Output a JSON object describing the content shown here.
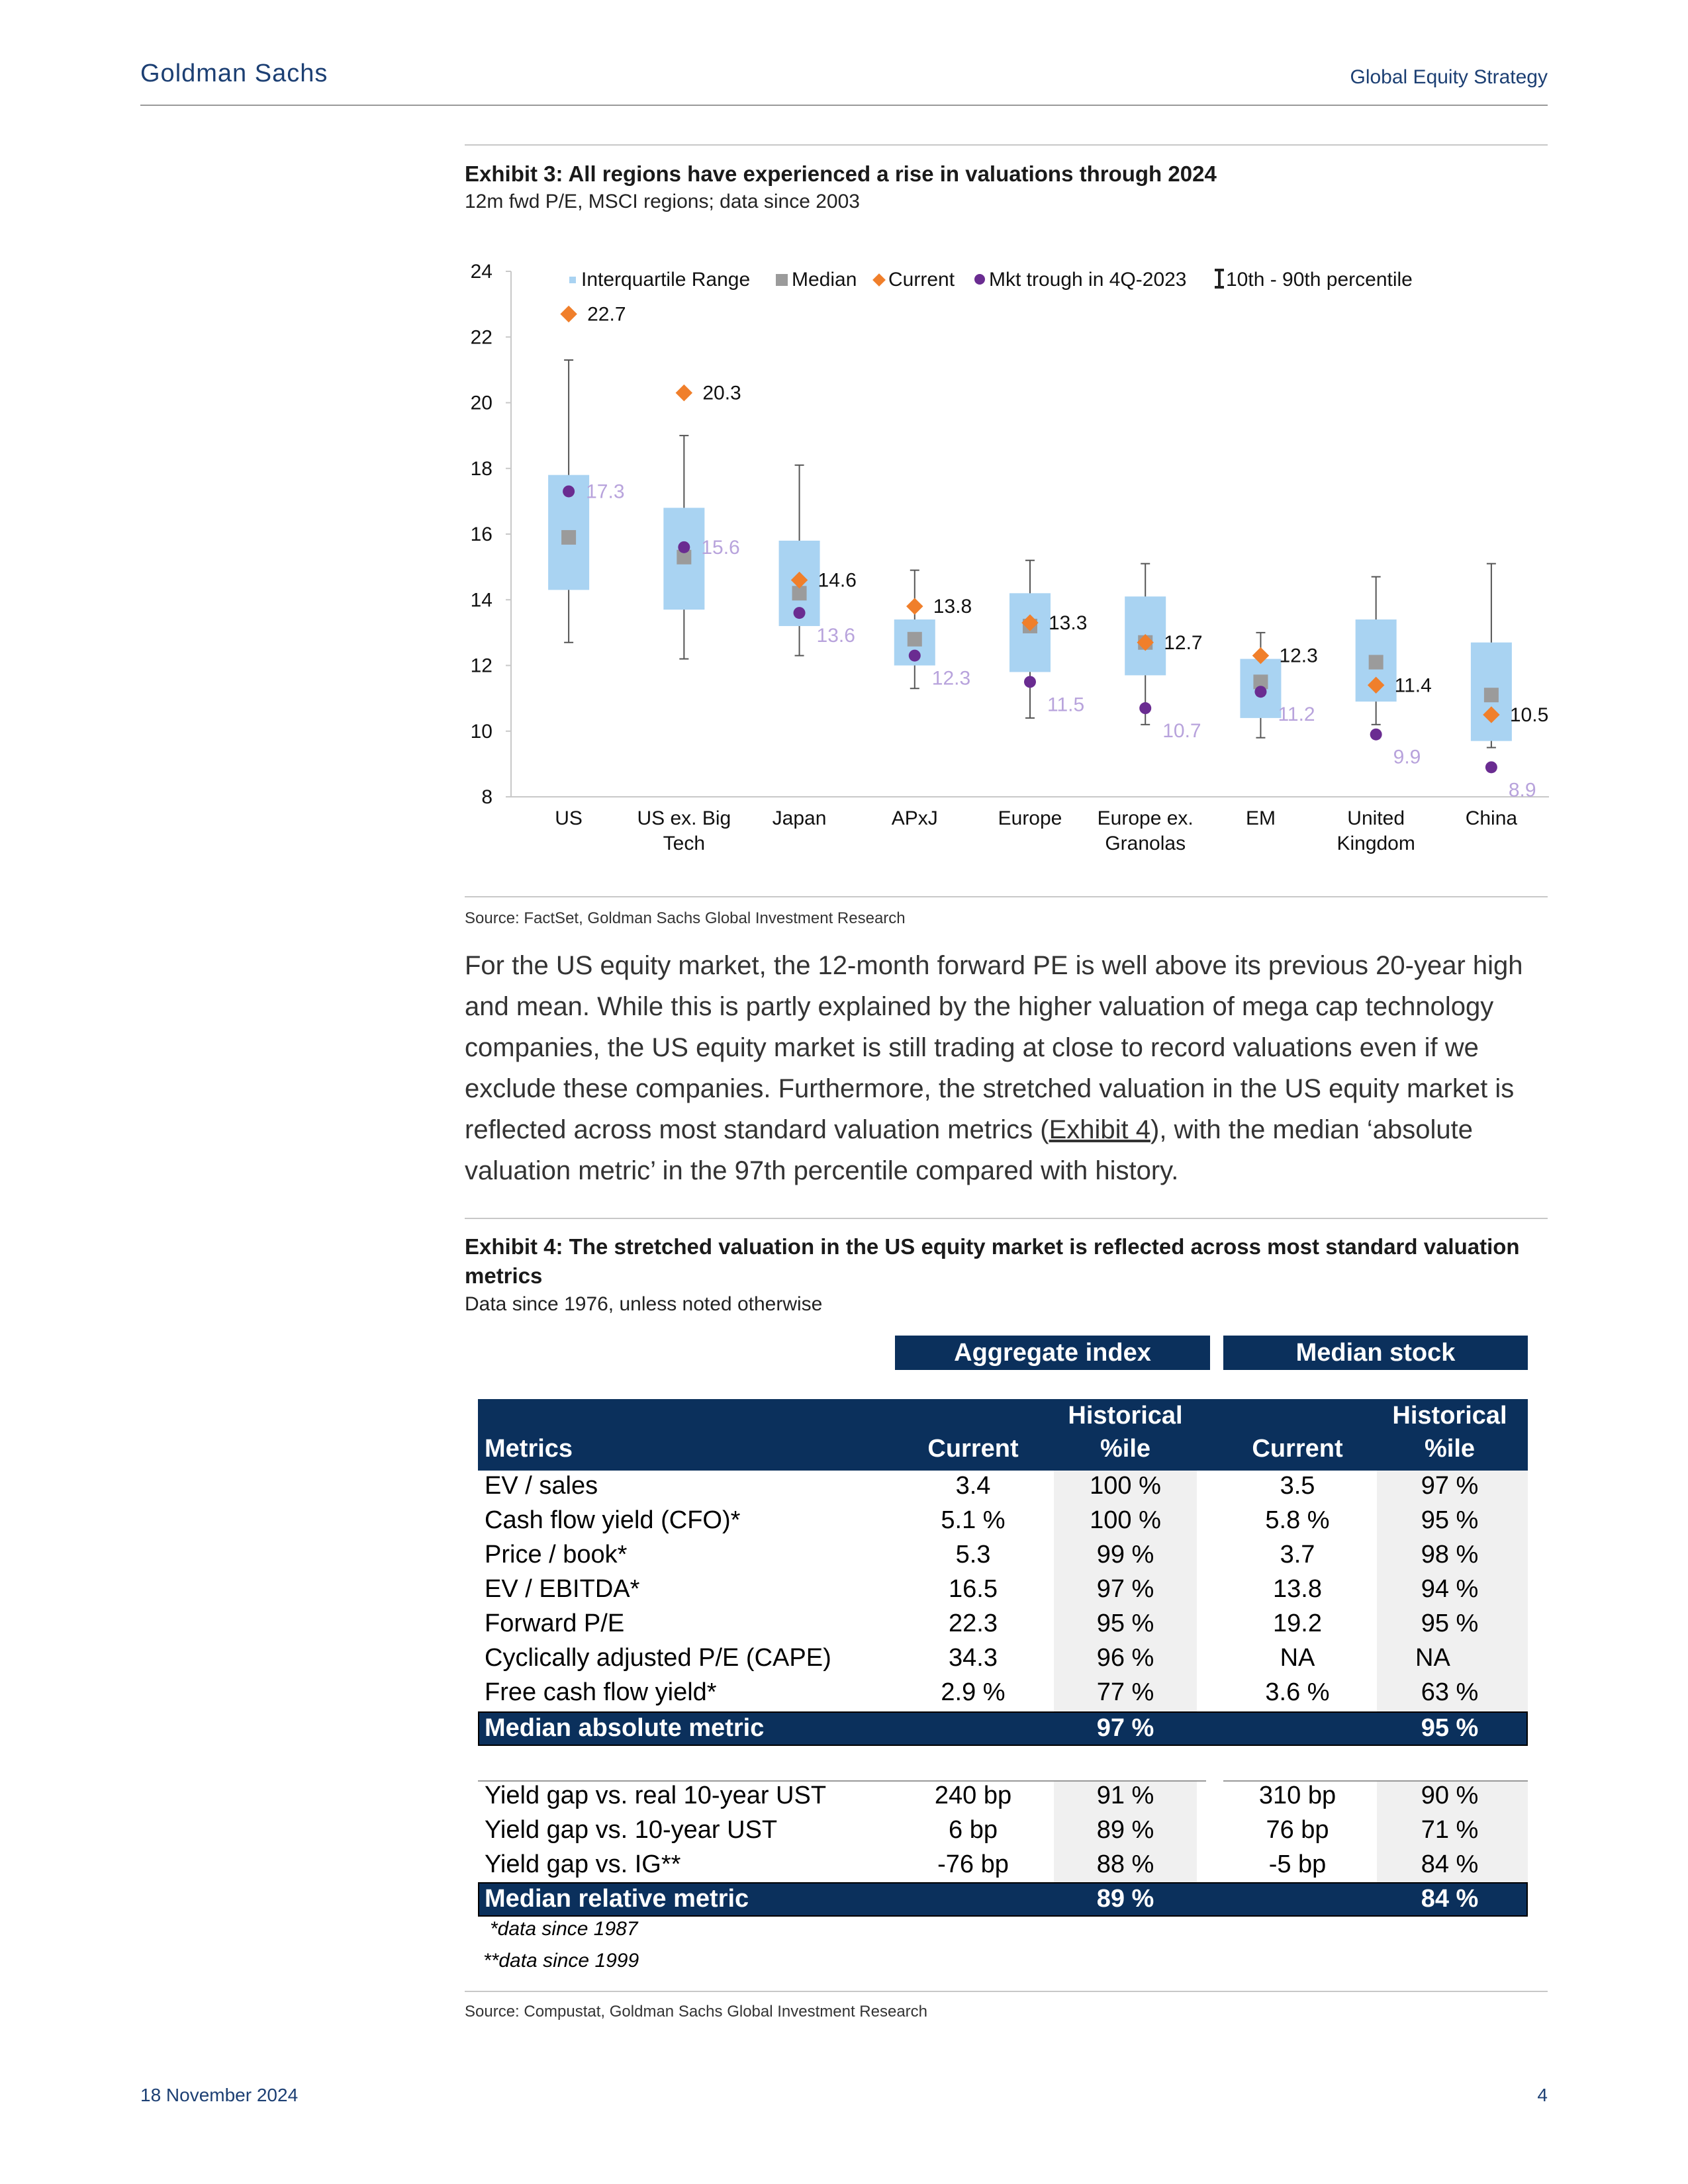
{
  "header": {
    "brand": "Goldman Sachs",
    "section": "Global Equity Strategy"
  },
  "exhibit3": {
    "title": "Exhibit 3: All regions have experienced a rise in valuations through 2024",
    "subtitle": "12m fwd P/E, MSCI regions; data since 2003",
    "source": "Source: FactSet, Goldman Sachs Global Investment Research"
  },
  "chart_data": {
    "type": "boxplot",
    "ylim": [
      8,
      24
    ],
    "yticks": [
      "8",
      "10",
      "12",
      "14",
      "16",
      "18",
      "20",
      "22",
      "24"
    ],
    "legend": [
      "Interquartile Range",
      "Median",
      "Current",
      "Mkt trough in 4Q-2023",
      "10th - 90th percentile"
    ],
    "legend_placement": "top",
    "categories": [
      {
        "label": [
          "US"
        ],
        "p10": 12.7,
        "p90": 21.3,
        "q1": 14.3,
        "q3": 17.8,
        "median": 15.9,
        "current": 22.7,
        "trough": 17.3,
        "current_label": "22.7",
        "trough_label": "17.3"
      },
      {
        "label": [
          "US ex. Big",
          "Tech"
        ],
        "p10": 12.2,
        "p90": 19.0,
        "q1": 13.7,
        "q3": 16.8,
        "median": 15.3,
        "current": 20.3,
        "trough": 15.6,
        "current_label": "20.3",
        "trough_label": "15.6"
      },
      {
        "label": [
          "Japan"
        ],
        "p10": 12.3,
        "p90": 18.1,
        "q1": 13.2,
        "q3": 15.8,
        "median": 14.2,
        "current": 14.6,
        "trough": 13.6,
        "current_label": "14.6",
        "trough_label": "13.6"
      },
      {
        "label": [
          "APxJ"
        ],
        "p10": 11.3,
        "p90": 14.9,
        "q1": 12.0,
        "q3": 13.4,
        "median": 12.8,
        "current": 13.8,
        "trough": 12.3,
        "current_label": "13.8",
        "trough_label": "12.3"
      },
      {
        "label": [
          "Europe"
        ],
        "p10": 10.4,
        "p90": 15.2,
        "q1": 11.8,
        "q3": 14.2,
        "median": 13.2,
        "current": 13.3,
        "trough": 11.5,
        "current_label": "13.3",
        "trough_label": "11.5"
      },
      {
        "label": [
          "Europe ex.",
          "Granolas"
        ],
        "p10": 10.2,
        "p90": 15.1,
        "q1": 11.7,
        "q3": 14.1,
        "median": 12.7,
        "current": 12.7,
        "trough": 10.7,
        "current_label": "12.7",
        "trough_label": "10.7"
      },
      {
        "label": [
          "EM"
        ],
        "p10": 9.8,
        "p90": 13.0,
        "q1": 10.4,
        "q3": 12.2,
        "median": 11.5,
        "current": 12.3,
        "trough": 11.2,
        "current_label": "12.3",
        "trough_label": "11.2"
      },
      {
        "label": [
          "United",
          "Kingdom"
        ],
        "p10": 10.2,
        "p90": 14.7,
        "q1": 10.9,
        "q3": 13.4,
        "median": 12.1,
        "current": 11.4,
        "trough": 9.9,
        "current_label": "11.4",
        "trough_label": "9.9"
      },
      {
        "label": [
          "China"
        ],
        "p10": 9.5,
        "p90": 15.1,
        "q1": 9.7,
        "q3": 12.7,
        "median": 11.1,
        "current": 10.5,
        "trough": 8.9,
        "current_label": "10.5",
        "trough_label": "8.9"
      }
    ],
    "colors": {
      "iqr": "#a9d3f2",
      "median": "#9b9b9b",
      "current": "#f07f2b",
      "trough": "#6a2c91",
      "trough_label": "#b8a3dc",
      "whisker": "#555555",
      "axis": "#c8c8c8"
    }
  },
  "body": {
    "part1": "For the US equity market, the 12-month forward PE is well above its previous 20-year high and mean. While this is partly explained by the higher valuation of mega cap technology companies, the US equity market is still trading at close to record valuations even if we exclude these companies. Furthermore, the stretched valuation in the US equity market is reflected across most standard valuation metrics (",
    "link": "Exhibit 4",
    "part2": "), with the median ‘absolute valuation metric’ in the 97th percentile compared with history."
  },
  "exhibit4": {
    "title": "Exhibit 4: The stretched valuation in the US equity market is reflected across most standard valuation metrics",
    "subtitle": "Data since 1976, unless noted otherwise",
    "source": "Source: Compustat, Goldman Sachs Global Investment Research",
    "group_headers": [
      "Aggregate index",
      "Median stock"
    ],
    "col_headers": {
      "metrics": "Metrics",
      "current": "Current",
      "historical": "Historical",
      "pctile": "%ile"
    },
    "absolute_rows": [
      [
        "EV / sales",
        "3.4",
        "100 %",
        "3.5",
        "97 %"
      ],
      [
        "Cash flow yield (CFO)*",
        "5.1 %",
        "100 %",
        "5.8 %",
        "95 %"
      ],
      [
        "Price / book*",
        "5.3",
        "99 %",
        "3.7",
        "98 %"
      ],
      [
        "EV / EBITDA*",
        "16.5",
        "97 %",
        "13.8",
        "94 %"
      ],
      [
        "Forward P/E",
        "22.3",
        "95 %",
        "19.2",
        "95 %"
      ],
      [
        "Cyclically adjusted P/E (CAPE)",
        "34.3",
        "96 %",
        "NA",
        "NA"
      ],
      [
        "Free cash flow yield*",
        "2.9 %",
        "77 %",
        "3.6 %",
        "63 %"
      ]
    ],
    "absolute_summary": [
      "Median absolute metric",
      "97 %",
      "95 %"
    ],
    "relative_rows": [
      [
        "Yield gap vs. real 10-year UST",
        "240 bp",
        "91 %",
        "310 bp",
        "90 %"
      ],
      [
        "Yield gap vs. 10-year UST",
        "6 bp",
        "89 %",
        "76 bp",
        "71 %"
      ],
      [
        "Yield gap vs. IG**",
        "-76 bp",
        "88 %",
        "-5 bp",
        "84 %"
      ]
    ],
    "relative_summary": [
      "Median relative metric",
      "89 %",
      "84 %"
    ],
    "footnotes": [
      "*data since 1987",
      "**data since 1999"
    ]
  },
  "footer": {
    "date": "18 November 2024",
    "page": "4"
  }
}
